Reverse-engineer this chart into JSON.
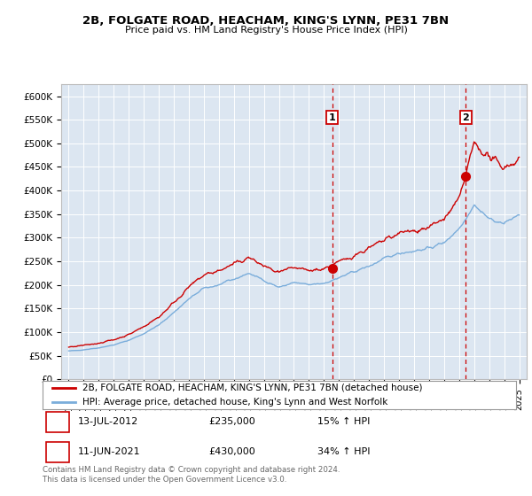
{
  "title1": "2B, FOLGATE ROAD, HEACHAM, KING'S LYNN, PE31 7BN",
  "title2": "Price paid vs. HM Land Registry's House Price Index (HPI)",
  "bg_color": "#dce6f1",
  "line1_color": "#cc0000",
  "line2_color": "#7aaddb",
  "ylim": [
    0,
    625000
  ],
  "yticks": [
    0,
    50000,
    100000,
    150000,
    200000,
    250000,
    300000,
    350000,
    400000,
    450000,
    500000,
    550000,
    600000
  ],
  "ytick_labels": [
    "£0",
    "£50K",
    "£100K",
    "£150K",
    "£200K",
    "£250K",
    "£300K",
    "£350K",
    "£400K",
    "£450K",
    "£500K",
    "£550K",
    "£600K"
  ],
  "sale1_year": 2012.54,
  "sale1_price": 235000,
  "sale2_year": 2021.44,
  "sale2_price": 430000,
  "legend_line1": "2B, FOLGATE ROAD, HEACHAM, KING'S LYNN, PE31 7BN (detached house)",
  "legend_line2": "HPI: Average price, detached house, King's Lynn and West Norfolk",
  "table_row1": [
    "1",
    "13-JUL-2012",
    "£235,000",
    "15% ↑ HPI"
  ],
  "table_row2": [
    "2",
    "11-JUN-2021",
    "£430,000",
    "34% ↑ HPI"
  ],
  "footer": "Contains HM Land Registry data © Crown copyright and database right 2024.\nThis data is licensed under the Open Government Licence v3.0.",
  "xlim_start": 1994.5,
  "xlim_end": 2025.5,
  "hpi_years": [
    1995,
    1996,
    1997,
    1998,
    1999,
    2000,
    2001,
    2002,
    2003,
    2004,
    2005,
    2006,
    2007,
    2008,
    2009,
    2010,
    2011,
    2012,
    2013,
    2014,
    2015,
    2016,
    2017,
    2018,
    2019,
    2020,
    2021,
    2022,
    2023,
    2024,
    2025
  ],
  "hpi_values": [
    60000,
    63000,
    67000,
    73000,
    83000,
    97000,
    115000,
    142000,
    170000,
    193000,
    200000,
    212000,
    225000,
    210000,
    195000,
    205000,
    200000,
    204000,
    215000,
    228000,
    240000,
    255000,
    268000,
    272000,
    278000,
    290000,
    320000,
    370000,
    340000,
    330000,
    350000
  ],
  "prop_years": [
    1995,
    1996,
    1997,
    1998,
    1999,
    2000,
    2001,
    2002,
    2003,
    2004,
    2005,
    2006,
    2007,
    2008,
    2009,
    2010,
    2011,
    2012,
    2013,
    2014,
    2015,
    2016,
    2017,
    2018,
    2019,
    2020,
    2021,
    2022,
    2023,
    2024,
    2025
  ],
  "prop_values": [
    68000,
    72000,
    77000,
    84000,
    95000,
    112000,
    132000,
    163000,
    195000,
    221000,
    230000,
    244000,
    258000,
    240000,
    225000,
    236000,
    230000,
    235000,
    248000,
    263000,
    277000,
    294000,
    309000,
    315000,
    322000,
    340000,
    380000,
    500000,
    470000,
    450000,
    465000
  ]
}
